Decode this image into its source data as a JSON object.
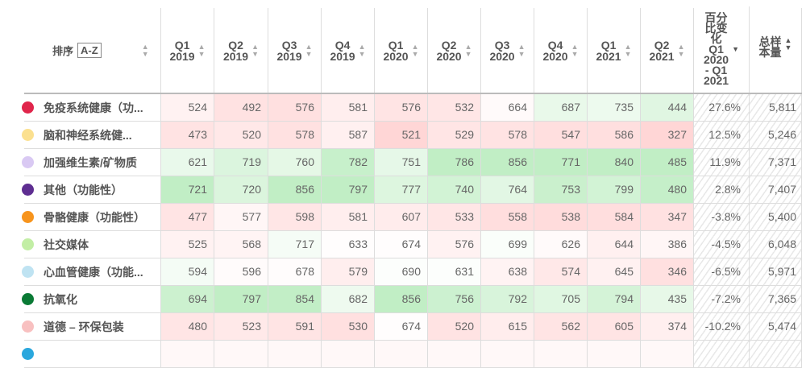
{
  "header": {
    "sort_label": "排序",
    "sort_button": "A-Z",
    "columns": [
      [
        "Q1",
        "2019"
      ],
      [
        "Q2",
        "2019"
      ],
      [
        "Q3",
        "2019"
      ],
      [
        "Q4",
        "2019"
      ],
      [
        "Q1",
        "2020"
      ],
      [
        "Q2",
        "2020"
      ],
      [
        "Q3",
        "2020"
      ],
      [
        "Q4",
        "2020"
      ],
      [
        "Q1",
        "2021"
      ],
      [
        "Q2",
        "2021"
      ]
    ],
    "pct_change": "百分\n比变\n化\nQ1\n2020\n- Q1\n2021",
    "total": "总样\n本量"
  },
  "rows": [
    {
      "name": "免疫系统健康（功...",
      "color": "#e0254b",
      "values": [
        524,
        492,
        576,
        581,
        576,
        532,
        664,
        687,
        735,
        444
      ],
      "pct": "27.6%",
      "total": "5,811"
    },
    {
      "name": "脑和神经系统健...",
      "color": "#fbe08f",
      "values": [
        473,
        520,
        578,
        587,
        521,
        529,
        578,
        547,
        586,
        327
      ],
      "pct": "12.5%",
      "total": "5,246"
    },
    {
      "name": "加强维生素/矿物质",
      "color": "#d9c9f3",
      "values": [
        621,
        719,
        760,
        782,
        751,
        786,
        856,
        771,
        840,
        485
      ],
      "pct": "11.9%",
      "total": "7,371"
    },
    {
      "name": "其他（功能性）",
      "color": "#5e2e91",
      "values": [
        721,
        720,
        856,
        797,
        777,
        740,
        764,
        753,
        799,
        480
      ],
      "pct": "2.8%",
      "total": "7,407"
    },
    {
      "name": "骨骼健康（功能性）",
      "color": "#f7941d",
      "values": [
        477,
        577,
        598,
        581,
        607,
        533,
        558,
        538,
        584,
        347
      ],
      "pct": "-3.8%",
      "total": "5,400"
    },
    {
      "name": "社交媒体",
      "color": "#c2eea5",
      "values": [
        525,
        568,
        717,
        633,
        674,
        576,
        699,
        626,
        644,
        386
      ],
      "pct": "-4.5%",
      "total": "6,048"
    },
    {
      "name": "心血管健康（功能...",
      "color": "#bfe3f2",
      "values": [
        594,
        596,
        678,
        579,
        690,
        631,
        638,
        574,
        645,
        346
      ],
      "pct": "-6.5%",
      "total": "5,971"
    },
    {
      "name": "抗氧化",
      "color": "#0a7a35",
      "values": [
        694,
        797,
        854,
        682,
        856,
        756,
        792,
        705,
        794,
        435
      ],
      "pct": "-7.2%",
      "total": "7,365"
    },
    {
      "name": "道德 – 环保包装",
      "color": "#f8c0c0",
      "values": [
        480,
        523,
        591,
        530,
        674,
        520,
        615,
        562,
        605,
        374
      ],
      "pct": "-10.2%",
      "total": "5,474"
    }
  ],
  "partial_row": {
    "color": "#2aa7dd"
  }
}
